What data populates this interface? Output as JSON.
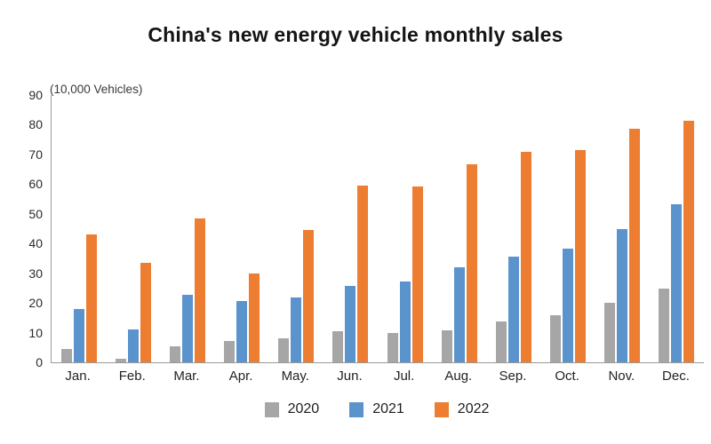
{
  "title": "China's new energy vehicle monthly sales",
  "axis_unit_label": "(10,000 Vehicles)",
  "chart_data": {
    "type": "bar",
    "title": "China's new energy vehicle monthly sales",
    "ylabel": "(10,000 Vehicles)",
    "xlabel": "",
    "categories": [
      "Jan.",
      "Feb.",
      "Mar.",
      "Apr.",
      "May.",
      "Jun.",
      "Jul.",
      "Aug.",
      "Sep.",
      "Oct.",
      "Nov.",
      "Dec."
    ],
    "series": [
      {
        "name": "2020",
        "color": "#a6a6a6",
        "values": [
          4.4,
          1.3,
          5.3,
          7.2,
          8.2,
          10.4,
          9.8,
          10.9,
          13.8,
          16.0,
          20.0,
          24.8
        ]
      },
      {
        "name": "2021",
        "color": "#5b93cd",
        "values": [
          17.9,
          11.0,
          22.6,
          20.6,
          21.7,
          25.6,
          27.1,
          32.1,
          35.7,
          38.3,
          45.0,
          53.1
        ]
      },
      {
        "name": "2022",
        "color": "#ed7d31",
        "values": [
          43.1,
          33.4,
          48.4,
          29.9,
          44.7,
          59.6,
          59.3,
          66.6,
          70.8,
          71.4,
          78.6,
          81.4
        ]
      }
    ],
    "ylim": [
      0,
      90
    ],
    "yticks": [
      0,
      10,
      20,
      30,
      40,
      50,
      60,
      70,
      80,
      90
    ],
    "grid": false,
    "legend_position": "bottom",
    "axis_color": "#9a9a9a"
  }
}
